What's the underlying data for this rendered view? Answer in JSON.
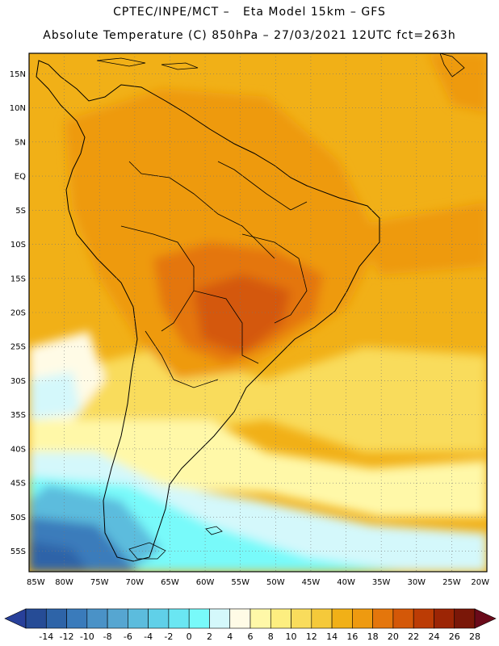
{
  "header": {
    "line1": "CPTEC/INPE/MCT –   Eta Model 15km – GFS",
    "line2": "Absolute Temperature (C) 850hPa – 27/03/2021 12UTC fct=263h"
  },
  "map": {
    "lat_labels": [
      "15N",
      "10N",
      "5N",
      "EQ",
      "5S",
      "10S",
      "15S",
      "20S",
      "25S",
      "30S",
      "35S",
      "40S",
      "45S",
      "50S",
      "55S"
    ],
    "lon_labels": [
      "85W",
      "80W",
      "75W",
      "70W",
      "65W",
      "60W",
      "55W",
      "50W",
      "45W",
      "40W",
      "35W",
      "30W",
      "25W",
      "20W"
    ],
    "lat_range": [
      18,
      -58
    ],
    "lon_range": [
      -85,
      -20
    ]
  },
  "colorbar": {
    "labels": [
      "-14",
      "-12",
      "-10",
      "-8",
      "-6",
      "-4",
      "-2",
      "0",
      "2",
      "4",
      "6",
      "8",
      "10",
      "12",
      "14",
      "16",
      "18",
      "20",
      "22",
      "24",
      "26",
      "28"
    ],
    "colors": [
      "#264c96",
      "#2e64a8",
      "#3a7bbb",
      "#4a92c7",
      "#56a6d1",
      "#5cbcdd",
      "#60d0e8",
      "#6ae6f2",
      "#78fafa",
      "#d4f8fb",
      "#fffbe6",
      "#fff8a8",
      "#fdee80",
      "#f9dc5c",
      "#f5c93a",
      "#f1b017",
      "#ee9a10",
      "#e4760c",
      "#d45808",
      "#bc3c05",
      "#9c2505",
      "#7a1708"
    ],
    "under_color": "#28409a",
    "over_color": "#6a0a1a"
  }
}
